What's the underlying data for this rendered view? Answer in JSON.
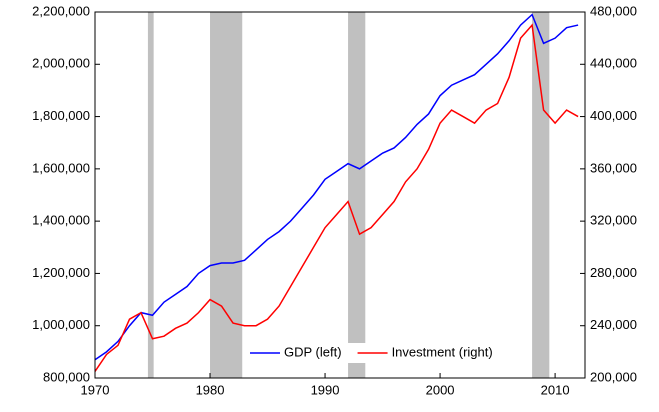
{
  "chart_data": {
    "type": "line",
    "x": [
      1970,
      1971,
      1972,
      1973,
      1974,
      1975,
      1976,
      1977,
      1978,
      1979,
      1980,
      1981,
      1982,
      1983,
      1984,
      1985,
      1986,
      1987,
      1988,
      1989,
      1990,
      1991,
      1992,
      1993,
      1994,
      1995,
      1996,
      1997,
      1998,
      1999,
      2000,
      2001,
      2002,
      2003,
      2004,
      2005,
      2006,
      2007,
      2008,
      2009,
      2010,
      2011,
      2012
    ],
    "series": [
      {
        "name": "GDP (left)",
        "color": "#0000ff",
        "axis": "y",
        "values": [
          870000,
          900000,
          940000,
          1000000,
          1050000,
          1040000,
          1090000,
          1120000,
          1150000,
          1200000,
          1230000,
          1240000,
          1240000,
          1250000,
          1290000,
          1330000,
          1360000,
          1400000,
          1450000,
          1500000,
          1560000,
          1590000,
          1620000,
          1600000,
          1630000,
          1660000,
          1680000,
          1720000,
          1770000,
          1810000,
          1880000,
          1920000,
          1940000,
          1960000,
          2000000,
          2040000,
          2090000,
          2150000,
          2190000,
          2080000,
          2100000,
          2140000,
          2150000
        ]
      },
      {
        "name": "Investment (right)",
        "color": "#ff0000",
        "axis": "y2",
        "values": [
          205000,
          218000,
          225000,
          245000,
          250000,
          230000,
          232000,
          238000,
          242000,
          250000,
          260000,
          255000,
          242000,
          240000,
          240000,
          245000,
          255000,
          270000,
          285000,
          300000,
          315000,
          325000,
          335000,
          310000,
          315000,
          325000,
          335000,
          350000,
          360000,
          375000,
          395000,
          405000,
          400000,
          395000,
          405000,
          410000,
          430000,
          460000,
          470000,
          405000,
          395000,
          405000,
          400000
        ]
      }
    ],
    "shaded_periods": [
      [
        1974.6,
        1975.1
      ],
      [
        1980.0,
        1982.8
      ],
      [
        1992.0,
        1993.5
      ],
      [
        2008.0,
        2009.5
      ]
    ],
    "shade_color": "#c0c0c0",
    "xlim": [
      1970,
      2012.6
    ],
    "xticks": [
      1970,
      1980,
      1990,
      2000,
      2010
    ],
    "ylim": [
      800000,
      2200000
    ],
    "yticks": [
      {
        "value": 800000,
        "label": "800,000"
      },
      {
        "value": 1000000,
        "label": "1,000,000"
      },
      {
        "value": 1200000,
        "label": "1,200,000"
      },
      {
        "value": 1400000,
        "label": "1,400,000"
      },
      {
        "value": 1600000,
        "label": "1,600,000"
      },
      {
        "value": 1800000,
        "label": "1,800,000"
      },
      {
        "value": 2000000,
        "label": "2,000,000"
      },
      {
        "value": 2200000,
        "label": "2,200,000"
      }
    ],
    "y2lim": [
      200000,
      480000
    ],
    "y2ticks": [
      {
        "value": 200000,
        "label": "200,000"
      },
      {
        "value": 240000,
        "label": "240,000"
      },
      {
        "value": 280000,
        "label": "280,000"
      },
      {
        "value": 320000,
        "label": "320,000"
      },
      {
        "value": 360000,
        "label": "360,000"
      },
      {
        "value": 400000,
        "label": "400,000"
      },
      {
        "value": 440000,
        "label": "440,000"
      },
      {
        "value": 480000,
        "label": "480,000"
      }
    ],
    "grid": false,
    "legend": "lower center"
  }
}
